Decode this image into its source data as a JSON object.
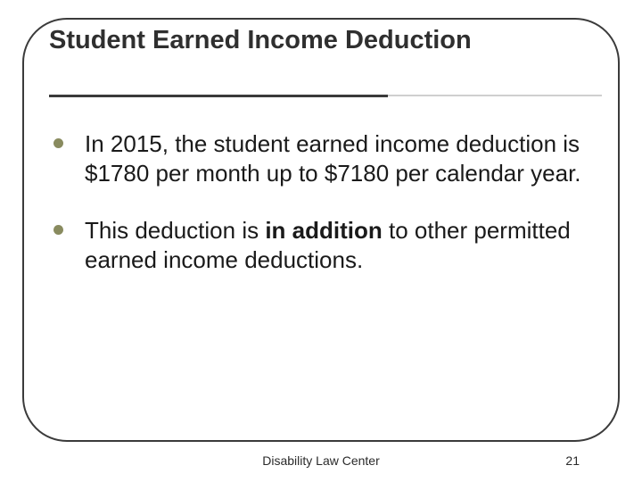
{
  "slide": {
    "title": "Student Earned Income Deduction",
    "title_fontsize": 29,
    "title_color": "#2f2f2f",
    "frame_color": "#3b3b3b",
    "frame_radius": 50,
    "underline_dark_color": "#3a3a3a",
    "underline_light_color": "#cfcfcf",
    "bullet_marker_color": "#898b5f",
    "body_fontsize": 26,
    "body_color": "#1a1a1a",
    "bullets": [
      {
        "text": "In 2015, the student earned income deduction is $1780 per month up to $7180 per calendar year."
      },
      {
        "html": "This deduction is <strong>in addition</strong> to other permitted earned income deductions."
      }
    ],
    "footer_center": "Disability Law Center",
    "page_number": "21",
    "footer_fontsize": 14,
    "footer_color": "#2a2a2a",
    "background_color": "#ffffff"
  }
}
